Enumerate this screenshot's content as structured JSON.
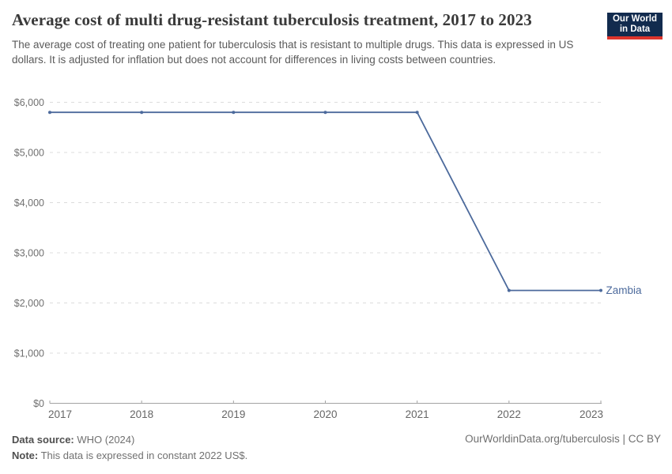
{
  "header": {
    "title": "Average cost of multi drug-resistant tuberculosis treatment, 2017 to 2023",
    "subtitle": "The average cost of treating one patient for tuberculosis that is resistant to multiple drugs. This data is expressed in US dollars. It is adjusted for inflation but does not account for differences in living costs between countries.",
    "logo": {
      "line1": "Our World",
      "line2": "in Data"
    }
  },
  "chart_data": {
    "type": "line",
    "title": "Average cost of multi drug-resistant tuberculosis treatment, 2017 to 2023",
    "x": [
      2017,
      2018,
      2019,
      2020,
      2021,
      2022,
      2023
    ],
    "xlabels": [
      "2017",
      "2018",
      "2019",
      "2020",
      "2021",
      "2022",
      "2023"
    ],
    "series": [
      {
        "name": "Zambia",
        "values": [
          5800,
          5800,
          5800,
          5800,
          5800,
          2250,
          2250
        ],
        "color": "#4c6a9c"
      }
    ],
    "ylim": [
      0,
      6000
    ],
    "ytick_step": 1000,
    "ylabels": [
      "$0",
      "$1,000",
      "$2,000",
      "$3,000",
      "$4,000",
      "$5,000",
      "$6,000"
    ],
    "grid": "horizontal-dashed",
    "legend_position": "line-end",
    "colors": {
      "line": "#4c6a9c",
      "grid": "#dcdcdc",
      "axis": "#a3a3a3",
      "ytick_text": "#707070",
      "xtick_text": "#666666"
    }
  },
  "footer": {
    "datasource_label": "Data source:",
    "datasource_value": "WHO (2024)",
    "note_label": "Note:",
    "note_value": "This data is expressed in constant 2022 US$.",
    "link": "OurWorldinData.org/tuberculosis | CC BY"
  }
}
